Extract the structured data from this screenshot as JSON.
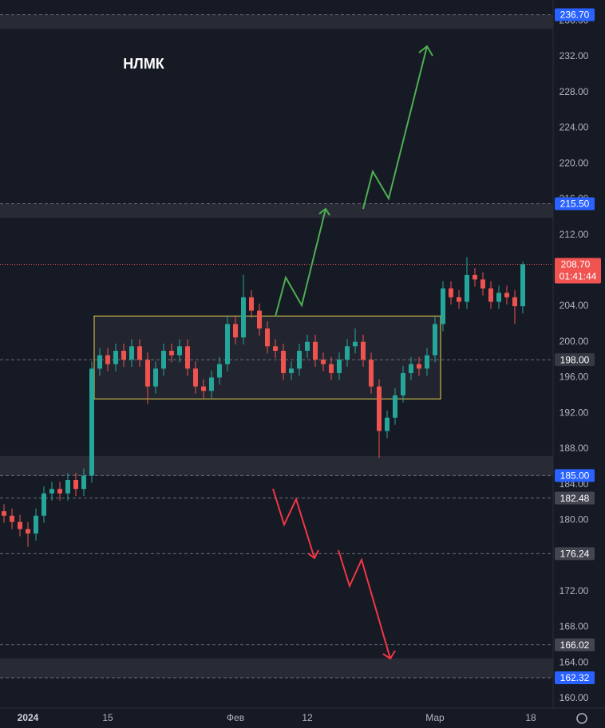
{
  "chart_data": {
    "type": "candlestick",
    "title": "НЛМК",
    "open": [
      181.0,
      180.5,
      179.8,
      179.0,
      178.5,
      180.5,
      183.0,
      183.5,
      183.0,
      184.5,
      183.5,
      185.0,
      197.0,
      198.5,
      197.5,
      199.0,
      198.0,
      199.5,
      198.0,
      195.0,
      197.0,
      199.0,
      198.5,
      199.5,
      197.0,
      195.0,
      194.5,
      196.0,
      197.5,
      202.0,
      200.5,
      205.0,
      203.5,
      201.5,
      199.5,
      199.0,
      196.5,
      197.0,
      199.0,
      200.0,
      198.0,
      197.5,
      196.5,
      198.0,
      199.5,
      200.0,
      198.0,
      195.0,
      190.0,
      191.5,
      194.0,
      196.5,
      197.5,
      197.0,
      198.5,
      202.0,
      206.0,
      205.0,
      204.5,
      207.5,
      207.0,
      206.0,
      204.5,
      205.5,
      205.0,
      204.0
    ],
    "high": [
      181.8,
      181.3,
      180.6,
      179.8,
      181.3,
      183.8,
      184.3,
      184.3,
      185.3,
      185.3,
      185.8,
      197.8,
      199.3,
      199.3,
      199.8,
      199.8,
      200.3,
      200.3,
      198.8,
      197.8,
      199.8,
      199.8,
      200.3,
      200.3,
      197.8,
      195.8,
      196.8,
      198.3,
      202.8,
      202.8,
      207.5,
      205.8,
      204.3,
      202.3,
      200.3,
      199.8,
      197.8,
      199.8,
      200.8,
      200.8,
      198.8,
      198.3,
      198.8,
      200.3,
      201.5,
      200.8,
      198.8,
      195.8,
      192.3,
      194.8,
      197.3,
      198.3,
      198.3,
      199.3,
      202.8,
      206.8,
      206.8,
      205.8,
      209.5,
      208.3,
      207.8,
      206.8,
      206.3,
      206.3,
      205.8,
      209.0
    ],
    "low": [
      179.7,
      179.0,
      178.2,
      177.0,
      177.7,
      179.7,
      182.2,
      182.2,
      182.2,
      182.7,
      182.7,
      184.2,
      196.2,
      196.7,
      196.7,
      197.2,
      197.2,
      197.2,
      193.0,
      194.2,
      196.2,
      197.7,
      197.7,
      196.2,
      194.2,
      193.7,
      193.7,
      195.2,
      196.7,
      199.7,
      199.7,
      202.7,
      200.7,
      198.7,
      198.2,
      195.7,
      195.7,
      196.2,
      198.2,
      197.2,
      196.7,
      195.7,
      195.7,
      197.2,
      198.7,
      197.2,
      194.2,
      187.0,
      189.2,
      190.7,
      193.2,
      195.7,
      196.2,
      196.2,
      197.7,
      201.2,
      204.2,
      203.7,
      203.7,
      206.2,
      205.2,
      203.7,
      203.7,
      204.2,
      202.0,
      203.2
    ],
    "close": [
      180.5,
      179.8,
      179.0,
      178.5,
      180.5,
      183.0,
      183.5,
      183.0,
      184.5,
      183.5,
      185.0,
      197.0,
      198.5,
      197.5,
      199.0,
      198.0,
      199.5,
      198.0,
      195.0,
      197.0,
      199.0,
      198.5,
      199.5,
      197.0,
      195.0,
      194.5,
      196.0,
      197.5,
      202.0,
      200.5,
      205.0,
      203.5,
      201.5,
      199.5,
      199.0,
      196.5,
      197.0,
      199.0,
      200.0,
      198.0,
      197.5,
      196.5,
      198.0,
      199.5,
      200.0,
      198.0,
      195.0,
      190.0,
      191.5,
      194.0,
      196.5,
      197.5,
      197.0,
      198.5,
      202.0,
      206.0,
      205.0,
      204.5,
      207.5,
      207.0,
      206.0,
      204.5,
      205.5,
      205.0,
      204.0,
      208.7
    ],
    "up_color": "#26a69a",
    "down_color": "#ef5350",
    "ylim": [
      158.92,
      238.35
    ],
    "yticks": [
      {
        "value": 160,
        "label": "160.00"
      },
      {
        "value": 164,
        "label": "164.00"
      },
      {
        "value": 168,
        "label": "168.00"
      },
      {
        "value": 172,
        "label": "172.00"
      },
      {
        "value": 176,
        "label": "176.00"
      },
      {
        "value": 180,
        "label": "180.00"
      },
      {
        "value": 184,
        "label": "184.00"
      },
      {
        "value": 188,
        "label": "188.00"
      },
      {
        "value": 192,
        "label": "192.00"
      },
      {
        "value": 196,
        "label": "196.00"
      },
      {
        "value": 200,
        "label": "200.00"
      },
      {
        "value": 204,
        "label": "204.00"
      },
      {
        "value": 208,
        "label": "208.00"
      },
      {
        "value": 212,
        "label": "212.00"
      },
      {
        "value": 216,
        "label": "216.00"
      },
      {
        "value": 220,
        "label": "220.00"
      },
      {
        "value": 224,
        "label": "224.00"
      },
      {
        "value": 228,
        "label": "228.00"
      },
      {
        "value": 232,
        "label": "232.00"
      },
      {
        "value": 236,
        "label": "236.00"
      }
    ],
    "xlim": [
      -0.5,
      68.8
    ],
    "xticks": [
      {
        "value": 3,
        "label": "2024"
      },
      {
        "value": 13,
        "label": "15"
      },
      {
        "value": 29,
        "label": "Фев"
      },
      {
        "value": 38,
        "label": "12"
      },
      {
        "value": 54,
        "label": "Мар"
      },
      {
        "value": 66,
        "label": "18"
      }
    ],
    "zones": [
      {
        "low": 235.1,
        "high": 236.7
      },
      {
        "low": 213.9,
        "high": 215.5
      },
      {
        "low": 185.0,
        "high": 187.2
      },
      {
        "low": 162.32,
        "high": 164.5
      }
    ],
    "levels": [
      {
        "value": 236.7,
        "label": "236.70",
        "color": "#2962ff"
      },
      {
        "value": 215.5,
        "label": "215.50",
        "color": "#2962ff"
      },
      {
        "value": 198,
        "label": "198.00",
        "color": "#363a45"
      },
      {
        "value": 185,
        "label": "185.00",
        "color": "#2962ff"
      },
      {
        "value": 182.48,
        "label": "182.48",
        "color": "#434651"
      },
      {
        "value": 176.24,
        "label": "176.24",
        "color": "#434651"
      },
      {
        "value": 166.02,
        "label": "166.02",
        "color": "#434651"
      },
      {
        "value": 162.32,
        "label": "162.32",
        "color": "#2962ff"
      }
    ],
    "range_box": {
      "x0": 11.3,
      "x1": 54.7,
      "low": 193.6,
      "high": 202.9,
      "color": "#e8d44d"
    },
    "last_price": {
      "value": 208.7,
      "label": "208.70",
      "countdown": "01:41:44",
      "color": "#f05350"
    }
  }
}
